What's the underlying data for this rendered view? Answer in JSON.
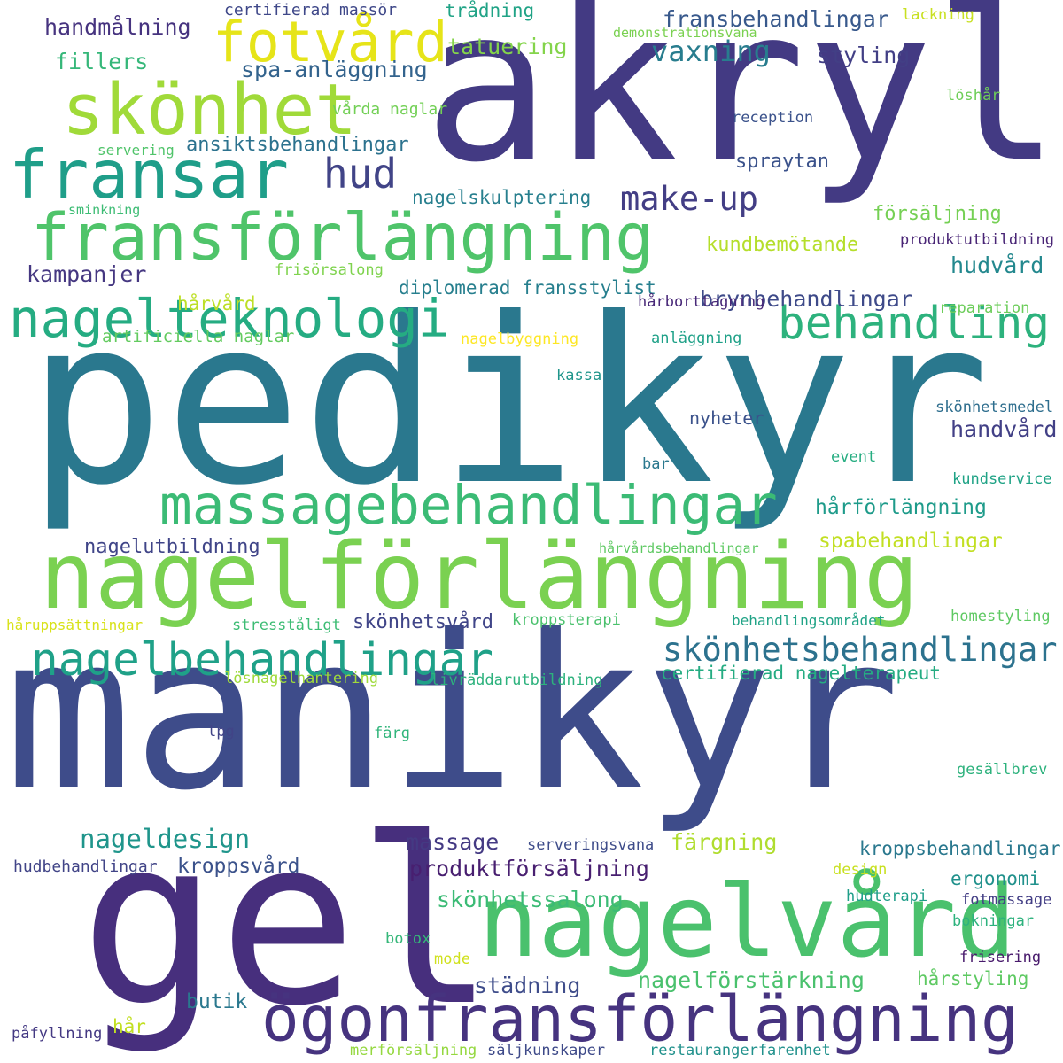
{
  "words": [
    {
      "text": "akryl",
      "color": "#433a83"
    },
    {
      "text": "pedikyr",
      "color": "#2a788e"
    },
    {
      "text": "manikyr",
      "color": "#3e4c8a"
    },
    {
      "text": "gel",
      "color": "#472f7d"
    },
    {
      "text": "nagelförlängning",
      "color": "#7ad151"
    },
    {
      "text": "nagelvård",
      "color": "#4ac16d"
    },
    {
      "text": "ögonfransförlängning",
      "color": "#46337f"
    },
    {
      "text": "fransförlängning",
      "color": "#4fc46a"
    },
    {
      "text": "fotvård",
      "color": "#e6e419"
    },
    {
      "text": "skönhet",
      "color": "#a0da39"
    },
    {
      "text": "fransar",
      "color": "#1f9e89"
    },
    {
      "text": "hud",
      "color": "#414487"
    },
    {
      "text": "massagebehandlingar",
      "color": "#3bbb75"
    },
    {
      "text": "nagelteknologi",
      "color": "#25ac82"
    },
    {
      "text": "behandling",
      "color": "#2db27d"
    },
    {
      "text": "nagelbehandlingar",
      "color": "#1fa188"
    },
    {
      "text": "skönhetsbehandlingar",
      "color": "#2c728e"
    },
    {
      "text": "make-up",
      "color": "#433e85"
    },
    {
      "text": "vaxning",
      "color": "#287d8e"
    },
    {
      "text": "spa-anläggning",
      "color": "#33638d"
    },
    {
      "text": "handmålning",
      "color": "#46337f"
    },
    {
      "text": "fransbehandlingar",
      "color": "#38598c"
    },
    {
      "text": "styling",
      "color": "#423f85"
    },
    {
      "text": "tatuering",
      "color": "#84d44b"
    },
    {
      "text": "fillers",
      "color": "#35b779"
    },
    {
      "text": "certifierad massör",
      "color": "#3f4889"
    },
    {
      "text": "trådning",
      "color": "#20a386"
    },
    {
      "text": "lackning",
      "color": "#c8e020"
    },
    {
      "text": "demonstrationsvana",
      "color": "#7ad151"
    },
    {
      "text": "löshår",
      "color": "#6ece58"
    },
    {
      "text": "vårda naglar",
      "color": "#73d056"
    },
    {
      "text": "reception",
      "color": "#3b528b"
    },
    {
      "text": "servering",
      "color": "#50c46a"
    },
    {
      "text": "ansiktsbehandlingar",
      "color": "#2c728e"
    },
    {
      "text": "spraytan",
      "color": "#3b528b"
    },
    {
      "text": "nagelskulptering",
      "color": "#277f8e"
    },
    {
      "text": "sminkning",
      "color": "#3dbc74"
    },
    {
      "text": "försäljning",
      "color": "#75d054"
    },
    {
      "text": "kundbemötande",
      "color": "#b5de2b"
    },
    {
      "text": "produktutbildning",
      "color": "#482475"
    },
    {
      "text": "kampanjer",
      "color": "#453781"
    },
    {
      "text": "hårvård",
      "color": "#bddf26"
    },
    {
      "text": "frisörsalong",
      "color": "#7fd34e"
    },
    {
      "text": "diplomerad fransstylist",
      "color": "#277f8e"
    },
    {
      "text": "brynbehandlingar",
      "color": "#3e4a89"
    },
    {
      "text": "hudvård",
      "color": "#23888e"
    },
    {
      "text": "reparation",
      "color": "#6ccd5a"
    },
    {
      "text": "hårborttagning",
      "color": "#482878"
    },
    {
      "text": "artificiella naglar",
      "color": "#63cb5f"
    },
    {
      "text": "nagelbyggning",
      "color": "#fde725"
    },
    {
      "text": "anläggning",
      "color": "#1fa188"
    },
    {
      "text": "kassa",
      "color": "#1f958b"
    },
    {
      "text": "skönhetsmedel",
      "color": "#2e6e8e"
    },
    {
      "text": "nyheter",
      "color": "#3b528b"
    },
    {
      "text": "handvård",
      "color": "#424086"
    },
    {
      "text": "event",
      "color": "#26ad81"
    },
    {
      "text": "bar",
      "color": "#2a788e"
    },
    {
      "text": "kundservice",
      "color": "#20a386"
    },
    {
      "text": "hårförlängning",
      "color": "#1e9b8a"
    },
    {
      "text": "nagelutbildning",
      "color": "#404588"
    },
    {
      "text": "hårvårdsbehandlingar",
      "color": "#5ec962"
    },
    {
      "text": "spabehandlingar",
      "color": "#c2df23"
    },
    {
      "text": "håruppsättningar",
      "color": "#d8e219"
    },
    {
      "text": "stresståligt",
      "color": "#3dbc74"
    },
    {
      "text": "skönhetsvård",
      "color": "#404588"
    },
    {
      "text": "kroppsterapi",
      "color": "#4ac16d"
    },
    {
      "text": "behandlingsområdet",
      "color": "#20a386"
    },
    {
      "text": "homestyling",
      "color": "#5ec962"
    },
    {
      "text": "certifierad nagelterapeut",
      "color": "#25ac82"
    },
    {
      "text": "lösnagelhantering",
      "color": "#9fda3a"
    },
    {
      "text": "livräddarutbildning",
      "color": "#2db27d"
    },
    {
      "text": "lpg",
      "color": "#414487"
    },
    {
      "text": "färg",
      "color": "#31b57b"
    },
    {
      "text": "gesällbrev",
      "color": "#2db27d"
    },
    {
      "text": "nageldesign",
      "color": "#1f958b"
    },
    {
      "text": "massage",
      "color": "#443a83"
    },
    {
      "text": "färgning",
      "color": "#b0dd2f"
    },
    {
      "text": "serveringsvana",
      "color": "#3e4c8a"
    },
    {
      "text": "kroppsbehandlingar",
      "color": "#2a788e"
    },
    {
      "text": "hudbehandlingar",
      "color": "#414487"
    },
    {
      "text": "kroppsvård",
      "color": "#3b528b"
    },
    {
      "text": "produktförsäljning",
      "color": "#481f70"
    },
    {
      "text": "ergonomi",
      "color": "#21918c"
    },
    {
      "text": "design",
      "color": "#c8e020"
    },
    {
      "text": "skönhetssalong",
      "color": "#3bbb75"
    },
    {
      "text": "hudterapi",
      "color": "#1f9e89"
    },
    {
      "text": "fotmassage",
      "color": "#433e85"
    },
    {
      "text": "bokningar",
      "color": "#2db27d"
    },
    {
      "text": "botox",
      "color": "#35b779"
    },
    {
      "text": "mode",
      "color": "#d0e11c"
    },
    {
      "text": "frisering",
      "color": "#481a6c"
    },
    {
      "text": "städning",
      "color": "#3e4c8a"
    },
    {
      "text": "nagelförstärkning",
      "color": "#4ac16d"
    },
    {
      "text": "hårstyling",
      "color": "#5ec962"
    },
    {
      "text": "butik",
      "color": "#2a788e"
    },
    {
      "text": "hår",
      "color": "#c2df23"
    },
    {
      "text": "påfyllning",
      "color": "#443983"
    },
    {
      "text": "merförsäljning",
      "color": "#95d840"
    },
    {
      "text": "säljkunskaper",
      "color": "#3e4a89"
    },
    {
      "text": "restaurangerfarenhet",
      "color": "#21918c"
    }
  ]
}
